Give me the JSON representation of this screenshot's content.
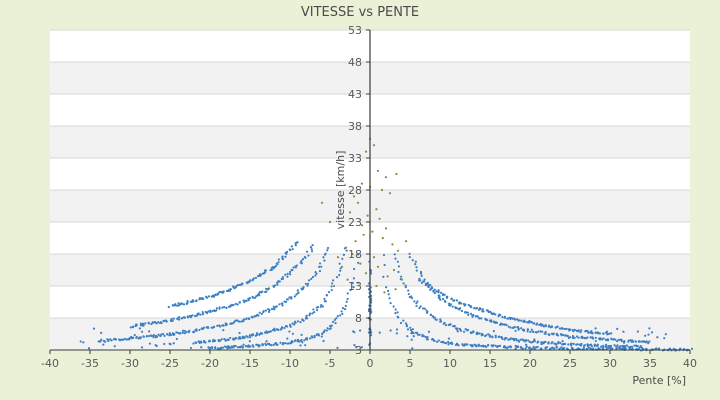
{
  "chart_data": {
    "type": "scatter",
    "title": "VITESSE vs PENTE",
    "xlabel": "Pente [%]",
    "ylabel": "vitesse [km/h]",
    "xlim": [
      -40,
      40
    ],
    "ylim": [
      3,
      53
    ],
    "x_ticks": [
      "-40",
      "-35",
      "-30",
      "-25",
      "-20",
      "-15",
      "-10",
      "-5",
      "0",
      "5",
      "10",
      "15",
      "20",
      "25",
      "30",
      "35",
      "40"
    ],
    "y_ticks": [
      "3",
      "8",
      "13",
      "18",
      "23",
      "28",
      "33",
      "38",
      "43",
      "48",
      "53"
    ],
    "grid": true,
    "legend": "none",
    "colors": {
      "background": "#ebf1d6",
      "plot_band_light": "#ffffff",
      "plot_band_dark": "#f2f2f2",
      "gridline": "#d9d9d9",
      "axis": "#3a3a3a",
      "series_main": "#3c7fc4",
      "series_outliers": "#8a8a3a"
    },
    "series": [
      {
        "color": "#3c7fc4",
        "description_curves": "hyperbolic bands: speed falls as |slope| grows",
        "curves": [
          {
            "side": "down",
            "x": [
              -1.5,
              -2,
              -3,
              -4,
              -5,
              -6,
              -8,
              -10,
              -12,
              -15,
              -18,
              -20
            ],
            "y": [
              18,
              14,
              10,
              8,
              6.5,
              5.6,
              4.6,
              4.2,
              3.9,
              3.6,
              3.4,
              3.3
            ]
          },
          {
            "side": "down",
            "x": [
              -3,
              -4,
              -5,
              -6,
              -8,
              -10,
              -12,
              -15,
              -18,
              -22
            ],
            "y": [
              19,
              15,
              12,
              10,
              8,
              6.8,
              6,
              5.2,
              4.6,
              4.1
            ]
          },
          {
            "side": "down",
            "x": [
              -5,
              -6,
              -7,
              -8,
              -10,
              -12,
              -15,
              -18,
              -22,
              -26,
              -30,
              -34
            ],
            "y": [
              19,
              16.5,
              14.5,
              13,
              11,
              9.5,
              8,
              7,
              6,
              5.3,
              4.8,
              4.4
            ]
          },
          {
            "side": "down",
            "x": [
              -7,
              -8,
              -10,
              -12,
              -15,
              -18,
              -22,
              -26,
              -30
            ],
            "y": [
              19.5,
              17.5,
              15,
              13,
              11,
              9.7,
              8.4,
              7.4,
              6.7
            ]
          },
          {
            "side": "down",
            "x": [
              -9,
              -10,
              -12,
              -15,
              -18,
              -21,
              -25
            ],
            "y": [
              20,
              18.5,
              16,
              13.8,
              12.2,
              11,
              9.8
            ]
          },
          {
            "side": "up",
            "x": [
              1.5,
              2,
              3,
              4,
              5,
              6,
              8,
              10,
              12,
              15,
              18,
              22,
              26,
              30,
              35,
              40
            ],
            "y": [
              18,
              13,
              9.5,
              7.5,
              6.2,
              5.4,
              4.5,
              4,
              3.8,
              3.6,
              3.4,
              3.3,
              3.2,
              3.2,
              3.1,
              3.1
            ]
          },
          {
            "side": "up",
            "x": [
              3,
              4,
              5,
              6,
              8,
              10,
              12,
              15,
              18,
              22,
              26,
              30,
              34
            ],
            "y": [
              18,
              14,
              11.5,
              10,
              8,
              6.8,
              6,
              5.2,
              4.6,
              4.1,
              3.8,
              3.6,
              3.5
            ]
          },
          {
            "side": "up",
            "x": [
              5,
              6,
              7,
              8,
              10,
              12,
              15,
              18,
              22,
              26,
              30,
              35
            ],
            "y": [
              18,
              15.5,
              13.5,
              12,
              10,
              8.8,
              7.5,
              6.5,
              5.6,
              5,
              4.6,
              4.3
            ]
          },
          {
            "side": "up",
            "x": [
              6,
              8,
              10,
              12,
              15,
              18,
              22,
              26,
              30
            ],
            "y": [
              14,
              12.5,
              11,
              10,
              8.8,
              7.8,
              6.8,
              6,
              5.5
            ]
          }
        ]
      },
      {
        "color": "#8a8a3a",
        "description_curves": "scattered high-speed points near zero slope",
        "points": [
          [
            0,
            36
          ],
          [
            0.5,
            35
          ],
          [
            -0.5,
            34
          ],
          [
            1,
            31
          ],
          [
            2,
            30
          ],
          [
            -1,
            29
          ],
          [
            0,
            28.5
          ],
          [
            1.5,
            28
          ],
          [
            -2,
            27
          ],
          [
            2.5,
            27.5
          ],
          [
            -1.5,
            26
          ],
          [
            0.8,
            25
          ],
          [
            -0.3,
            24
          ],
          [
            1.2,
            23.5
          ],
          [
            -2.5,
            24.5
          ],
          [
            2,
            22
          ],
          [
            -1,
            22.5
          ],
          [
            0.3,
            21.5
          ],
          [
            -0.8,
            21
          ],
          [
            1.6,
            20.5
          ],
          [
            -1.8,
            20
          ],
          [
            2.8,
            19.5
          ],
          [
            -3,
            19
          ],
          [
            3.5,
            18.5
          ],
          [
            -2.2,
            18
          ],
          [
            0.5,
            17.5
          ],
          [
            -4,
            17.5
          ],
          [
            -1.2,
            16.5
          ],
          [
            1,
            16
          ],
          [
            -3.5,
            16
          ],
          [
            3,
            15.5
          ],
          [
            -0.5,
            15
          ],
          [
            2.2,
            14.5
          ],
          [
            -2.8,
            14
          ],
          [
            4,
            14
          ],
          [
            -1.5,
            13.5
          ],
          [
            0.8,
            13
          ],
          [
            -4.5,
            13
          ],
          [
            3.2,
            12.5
          ],
          [
            1.8,
            12
          ],
          [
            -6,
            26
          ],
          [
            -5,
            23
          ],
          [
            3.3,
            30.5
          ],
          [
            4.5,
            20
          ]
        ]
      }
    ]
  }
}
